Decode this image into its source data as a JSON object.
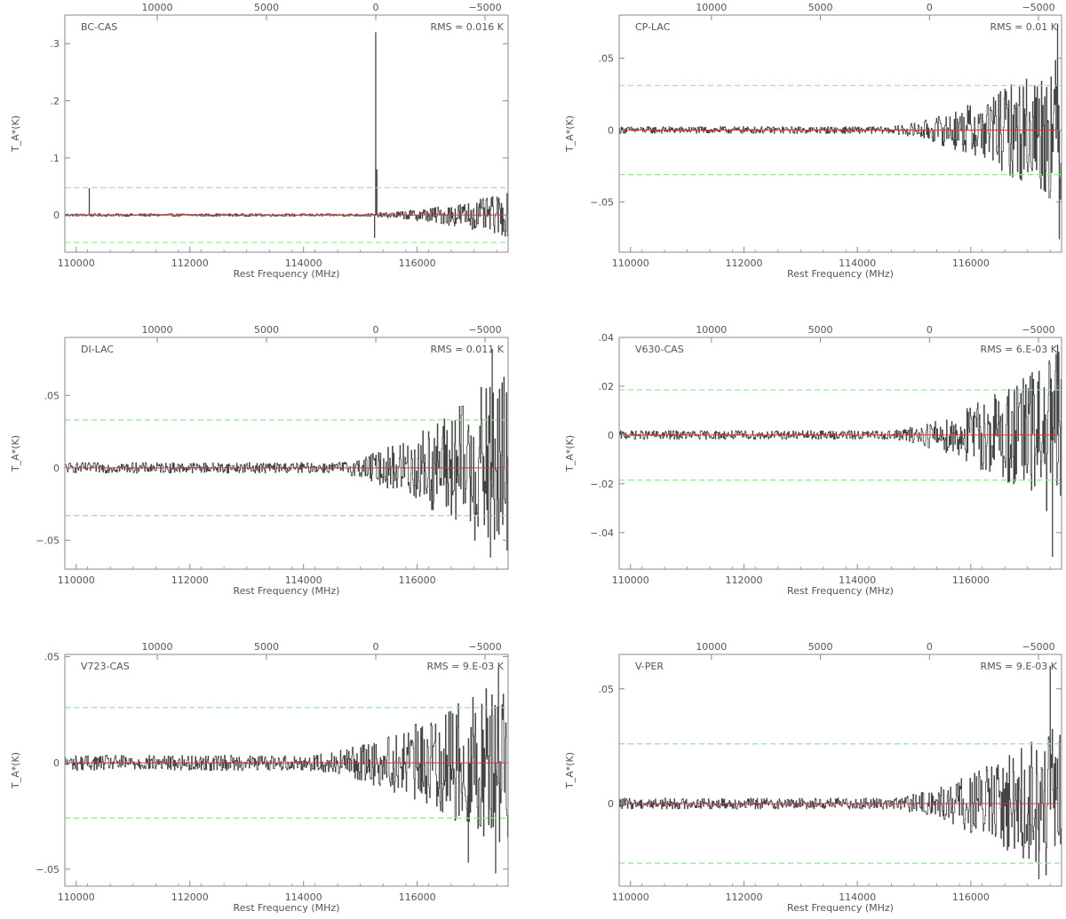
{
  "colors": {
    "axis": "#8a8a8a",
    "text": "#555555",
    "spectrum": "#444444",
    "baseline": "#e03030",
    "rms_band": "#8ee88e"
  },
  "chart_data": [
    {
      "type": "line",
      "source": "BC-CAS",
      "rms_label": "RMS = 0.016 K",
      "xlabel": "Rest Frequency (MHz)",
      "ylabel": "T_A*(K)",
      "xlim": [
        109800,
        117600
      ],
      "ylim": [
        -0.065,
        0.35
      ],
      "xticks": [
        110000,
        112000,
        114000,
        116000
      ],
      "yticks": [
        0,
        0.1,
        0.2,
        0.3
      ],
      "top_axis_ticks": [
        10000,
        5000,
        0,
        -5000
      ],
      "rms_band": 0.048,
      "baseline": 0,
      "noise": {
        "start": 0.002,
        "rise_from": 115000,
        "end": 0.032
      },
      "spikes": [
        {
          "x": 110230,
          "y": 0.047
        },
        {
          "x": 115270,
          "y": 0.32
        },
        {
          "x": 115290,
          "y": 0.08
        },
        {
          "x": 115250,
          "y": -0.04
        }
      ]
    },
    {
      "type": "line",
      "source": "CP-LAC",
      "rms_label": "RMS = 0.01 K",
      "xlabel": "Rest Frequency (MHz)",
      "ylabel": "T_A*(K)",
      "xlim": [
        109800,
        117600
      ],
      "ylim": [
        -0.085,
        0.08
      ],
      "xticks": [
        110000,
        112000,
        114000,
        116000
      ],
      "yticks": [
        -0.05,
        0,
        0.05
      ],
      "top_axis_ticks": [
        10000,
        5000,
        0,
        -5000
      ],
      "rms_band": 0.031,
      "baseline": 0,
      "noise": {
        "start": 0.002,
        "rise_from": 114500,
        "end": 0.045
      },
      "spikes": [
        {
          "x": 117530,
          "y": 0.074
        },
        {
          "x": 117560,
          "y": -0.076
        }
      ]
    },
    {
      "type": "line",
      "source": "DI-LAC",
      "rms_label": "RMS = 0.011 K",
      "xlabel": "Rest Frequency (MHz)",
      "ylabel": "T_A*(K)",
      "xlim": [
        109800,
        117600
      ],
      "ylim": [
        -0.07,
        0.09
      ],
      "xticks": [
        110000,
        112000,
        114000,
        116000
      ],
      "yticks": [
        -0.05,
        0,
        0.05
      ],
      "top_axis_ticks": [
        10000,
        5000,
        0,
        -5000
      ],
      "rms_band": 0.033,
      "baseline": 0,
      "noise": {
        "start": 0.003,
        "rise_from": 114500,
        "end": 0.06
      },
      "spikes": [
        {
          "x": 117320,
          "y": 0.082
        },
        {
          "x": 117290,
          "y": -0.062
        }
      ]
    },
    {
      "type": "line",
      "source": "V630-CAS",
      "rms_label": "RMS = 6.E-03 K",
      "xlabel": "Rest Frequency (MHz)",
      "ylabel": "T_A*(K)",
      "xlim": [
        109800,
        117600
      ],
      "ylim": [
        -0.055,
        0.04
      ],
      "xticks": [
        110000,
        112000,
        114000,
        116000
      ],
      "yticks": [
        -0.04,
        -0.02,
        0,
        0.02,
        0.04
      ],
      "top_axis_ticks": [
        10000,
        5000,
        0,
        -5000
      ],
      "rms_band": 0.0185,
      "baseline": 0,
      "noise": {
        "start": 0.0015,
        "rise_from": 114500,
        "end": 0.03
      },
      "spikes": [
        {
          "x": 117440,
          "y": -0.05
        },
        {
          "x": 117530,
          "y": 0.037
        }
      ]
    },
    {
      "type": "line",
      "source": "V723-CAS",
      "rms_label": "RMS = 9.E-03 K",
      "xlabel": "Rest Frequency (MHz)",
      "ylabel": "T_A*(K)",
      "xlim": [
        109800,
        117600
      ],
      "ylim": [
        -0.058,
        0.051
      ],
      "xticks": [
        110000,
        112000,
        114000,
        116000
      ],
      "yticks": [
        -0.05,
        0,
        0.05
      ],
      "top_axis_ticks": [
        10000,
        5000,
        0,
        -5000
      ],
      "rms_band": 0.026,
      "baseline": 0,
      "noise": {
        "start": 0.003,
        "rise_from": 114000,
        "end": 0.035
      },
      "spikes": [
        {
          "x": 116900,
          "y": -0.047
        },
        {
          "x": 117430,
          "y": 0.045
        },
        {
          "x": 117380,
          "y": -0.052
        }
      ]
    },
    {
      "type": "line",
      "source": "V-PER",
      "rms_label": "RMS = 9.E-03 K",
      "xlabel": "Rest Frequency (MHz)",
      "ylabel": "T_A*(K)",
      "xlim": [
        109800,
        117600
      ],
      "ylim": [
        -0.036,
        0.065
      ],
      "xticks": [
        110000,
        112000,
        114000,
        116000
      ],
      "yticks": [
        0,
        0.05
      ],
      "top_axis_ticks": [
        10000,
        5000,
        0,
        -5000
      ],
      "rms_band": 0.026,
      "baseline": 0,
      "noise": {
        "start": 0.002,
        "rise_from": 114500,
        "end": 0.03
      },
      "spikes": [
        {
          "x": 117400,
          "y": 0.06
        },
        {
          "x": 117200,
          "y": -0.033
        }
      ]
    }
  ]
}
